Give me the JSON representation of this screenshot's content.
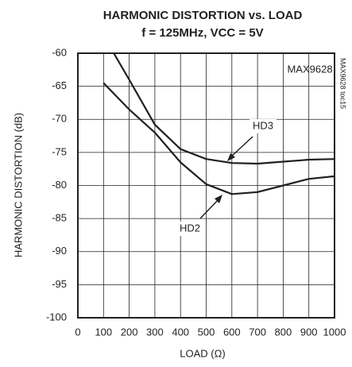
{
  "chart_data": {
    "type": "line",
    "title": [
      "HARMONIC DISTORTION vs. LOAD",
      "f = 125MHz, VCC = 5V"
    ],
    "xlabel": "LOAD (Ω)",
    "ylabel": "HARMONIC DISTORTION (dB)",
    "annotations": [
      "MAX9628",
      "MAX9628 toc15"
    ],
    "xlim": [
      0,
      1000
    ],
    "xticks": [
      0,
      100,
      200,
      300,
      400,
      500,
      600,
      700,
      800,
      900,
      1000
    ],
    "ylim": [
      -100,
      -60
    ],
    "yticks": [
      -60,
      -65,
      -70,
      -75,
      -80,
      -85,
      -90,
      -95,
      -100
    ],
    "grid": true,
    "series": [
      {
        "name": "HD3",
        "color": "#231f20",
        "x": [
          140,
          200,
          300,
          400,
          500,
          600,
          700,
          800,
          900,
          1000
        ],
        "values": [
          -60,
          -64,
          -70.8,
          -74.5,
          -76,
          -76.6,
          -76.7,
          -76.4,
          -76.1,
          -76
        ]
      },
      {
        "name": "HD2",
        "color": "#231f20",
        "x": [
          100,
          200,
          300,
          400,
          500,
          600,
          700,
          800,
          900,
          1000
        ],
        "values": [
          -64.5,
          -68.5,
          -72,
          -76.5,
          -79.8,
          -81.3,
          -81,
          -80,
          -79,
          -78.6
        ]
      }
    ]
  }
}
